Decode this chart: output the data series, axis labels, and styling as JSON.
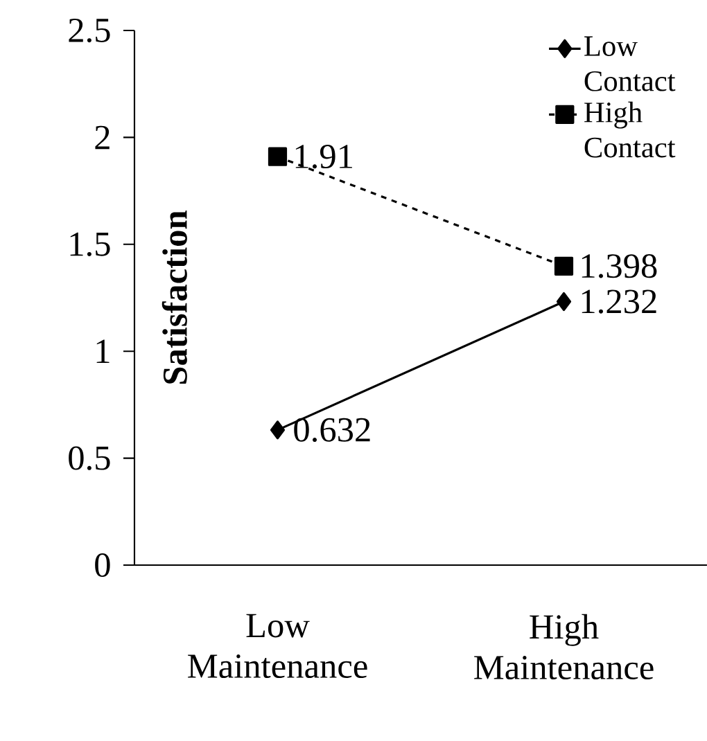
{
  "chart_data": {
    "type": "line",
    "ylabel": "Satisfaction",
    "categories": [
      "Low Maintenance",
      "High Maintenance"
    ],
    "series": [
      {
        "name": "Low Contact",
        "color": "#000000",
        "values": [
          0.632,
          1.232
        ],
        "marker": "diamond",
        "line_style": "solid"
      },
      {
        "name": "High Contact",
        "color": "#000000",
        "values": [
          1.91,
          1.398
        ],
        "marker": "square",
        "line_style": "dashed"
      }
    ],
    "ylim": [
      0,
      2.5
    ],
    "yticks": [
      0,
      0.5,
      1,
      1.5,
      2,
      2.5
    ],
    "data_labels": true,
    "legend": "top right",
    "grid": false
  }
}
